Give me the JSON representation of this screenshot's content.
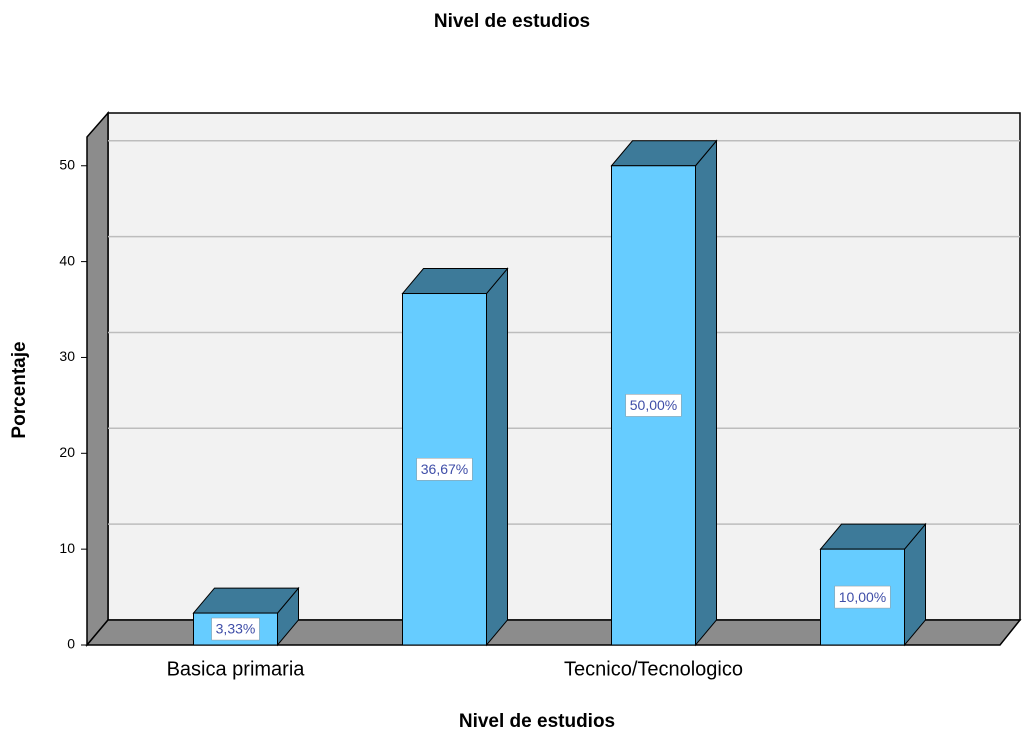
{
  "chart_data": {
    "type": "bar3d",
    "title": "Nivel de estudios",
    "x_label": "Nivel de estudios",
    "y_label": "Porcentaje",
    "categories": [
      "Basica primaria",
      null,
      "Tecnico/Tecnologico",
      null
    ],
    "values": [
      3.33,
      36.67,
      50,
      10
    ],
    "value_labels": [
      "3,33%",
      "36,67%",
      "50,00%",
      "10,00%"
    ],
    "color": "#66ccff",
    "side_color": "#3d7a99",
    "ylim": [
      0,
      53
    ],
    "yticks": [
      0,
      10,
      20,
      30,
      40,
      50
    ],
    "grid": true
  }
}
